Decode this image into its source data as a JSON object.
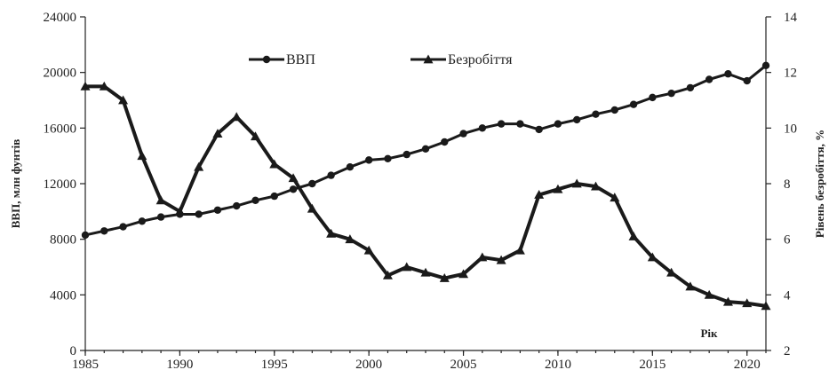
{
  "chart_data": {
    "type": "line",
    "x": [
      1985,
      1986,
      1987,
      1988,
      1989,
      1990,
      1991,
      1992,
      1993,
      1994,
      1995,
      1996,
      1997,
      1998,
      1999,
      2000,
      2001,
      2002,
      2003,
      2004,
      2005,
      2006,
      2007,
      2008,
      2009,
      2010,
      2011,
      2012,
      2013,
      2014,
      2015,
      2016,
      2017,
      2018,
      2019,
      2020,
      2021
    ],
    "xlabel": "Рік",
    "ylabel_left": "ВВП, млн фунтів",
    "ylabel_right": "Рівень безробіття, %",
    "xlim": [
      1985,
      2021
    ],
    "ylim_left": [
      0,
      24000
    ],
    "ylim_right": [
      2,
      14
    ],
    "x_ticks": [
      "1985",
      "1990",
      "1995",
      "2000",
      "2005",
      "2010",
      "2015",
      "2020"
    ],
    "y_left_ticks": [
      "0",
      "4000",
      "8000",
      "12000",
      "16000",
      "20000",
      "24000"
    ],
    "y_right_ticks": [
      "2",
      "4",
      "6",
      "8",
      "10",
      "12",
      "14"
    ],
    "grid": false,
    "legend_position": "top",
    "series": [
      {
        "name": "ВВП",
        "axis": "left",
        "marker": "circle",
        "color": "#1a1a1a",
        "values": [
          8300,
          8600,
          8900,
          9300,
          9600,
          9800,
          9800,
          10100,
          10400,
          10800,
          11100,
          11600,
          12000,
          12600,
          13200,
          13700,
          13800,
          14100,
          14500,
          15000,
          15600,
          16000,
          16300,
          16300,
          15900,
          16300,
          16600,
          17000,
          17300,
          17700,
          18200,
          18500,
          18900,
          19500,
          19900,
          19400,
          20500
        ]
      },
      {
        "name": "Безробіття",
        "axis": "right",
        "marker": "triangle",
        "color": "#1a1a1a",
        "values": [
          11.5,
          11.5,
          11.0,
          9.0,
          7.4,
          7.0,
          8.6,
          9.8,
          10.4,
          9.7,
          8.7,
          8.2,
          7.1,
          6.2,
          6.0,
          5.6,
          4.7,
          5.0,
          4.8,
          4.6,
          4.75,
          5.35,
          5.25,
          5.6,
          7.6,
          7.8,
          8.0,
          7.9,
          7.5,
          6.1,
          5.35,
          4.8,
          4.3,
          4.0,
          3.75,
          3.7,
          3.6
        ]
      }
    ]
  }
}
